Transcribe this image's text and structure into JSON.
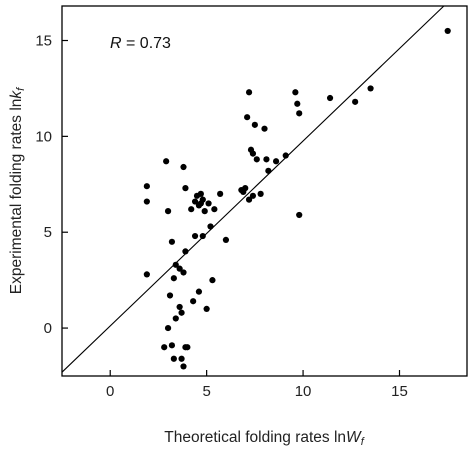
{
  "chart_data": {
    "type": "scatter",
    "title": "",
    "xlabel": "Theoretical folding rates ln",
    "xlabel_sym": "W",
    "xlabel_sub": "f",
    "ylabel": "Experimental folding rates ln",
    "ylabel_sym": "k",
    "ylabel_sub": "f",
    "xlim": [
      -2.5,
      18.5
    ],
    "ylim": [
      -2.5,
      16.8
    ],
    "xticks": [
      0,
      5,
      10,
      15
    ],
    "yticks": [
      0,
      5,
      10,
      15
    ],
    "xtick_labels": [
      "0",
      "5",
      "10",
      "15"
    ],
    "ytick_labels": [
      "0",
      "5",
      "10",
      "15"
    ],
    "grid": false,
    "annotation_sym": "R",
    "annotation_text": " = 0.73",
    "fit_line": {
      "x": [
        -2.5,
        17.3
      ],
      "y": [
        -2.3,
        16.8
      ]
    },
    "x": [
      17.5,
      13.5,
      12.7,
      11.4,
      9.6,
      9.7,
      9.8,
      7.2,
      7.1,
      7.5,
      7.3,
      8.0,
      8.2,
      8.1,
      8.6,
      9.1,
      7.6,
      7.4,
      7.0,
      6.8,
      6.9,
      7.8,
      7.2,
      7.4,
      9.8,
      1.9,
      2.9,
      1.9,
      3.0,
      3.8,
      3.9,
      4.7,
      4.5,
      4.4,
      4.8,
      4.6,
      4.2,
      4.9,
      5.1,
      5.7,
      4.7,
      5.4,
      6.0,
      5.2,
      4.8,
      4.4,
      3.2,
      3.9,
      5.3,
      1.9,
      3.4,
      3.6,
      3.8,
      3.3,
      3.1,
      4.6,
      4.3,
      5.0,
      3.6,
      3.7,
      3.4,
      3.0,
      3.2,
      2.8,
      3.9,
      4.0,
      3.7,
      3.3,
      3.8
    ],
    "y": [
      15.5,
      12.5,
      11.8,
      12.0,
      12.3,
      11.7,
      11.2,
      12.3,
      11.0,
      10.6,
      9.3,
      10.4,
      8.2,
      8.8,
      8.7,
      9.0,
      8.8,
      9.1,
      7.3,
      7.2,
      7.1,
      7.0,
      6.7,
      6.9,
      5.9,
      7.4,
      8.7,
      6.6,
      6.1,
      8.4,
      7.3,
      7.0,
      6.9,
      6.6,
      6.7,
      6.4,
      6.2,
      6.1,
      6.5,
      7.0,
      6.5,
      6.2,
      4.6,
      5.3,
      4.8,
      4.8,
      4.5,
      4.0,
      2.5,
      2.8,
      3.3,
      3.1,
      2.9,
      2.6,
      1.7,
      1.9,
      1.4,
      1.0,
      1.1,
      0.8,
      0.5,
      0.0,
      -0.9,
      -1.0,
      -1.0,
      -1.0,
      -1.6,
      -1.6,
      -2.0
    ]
  }
}
